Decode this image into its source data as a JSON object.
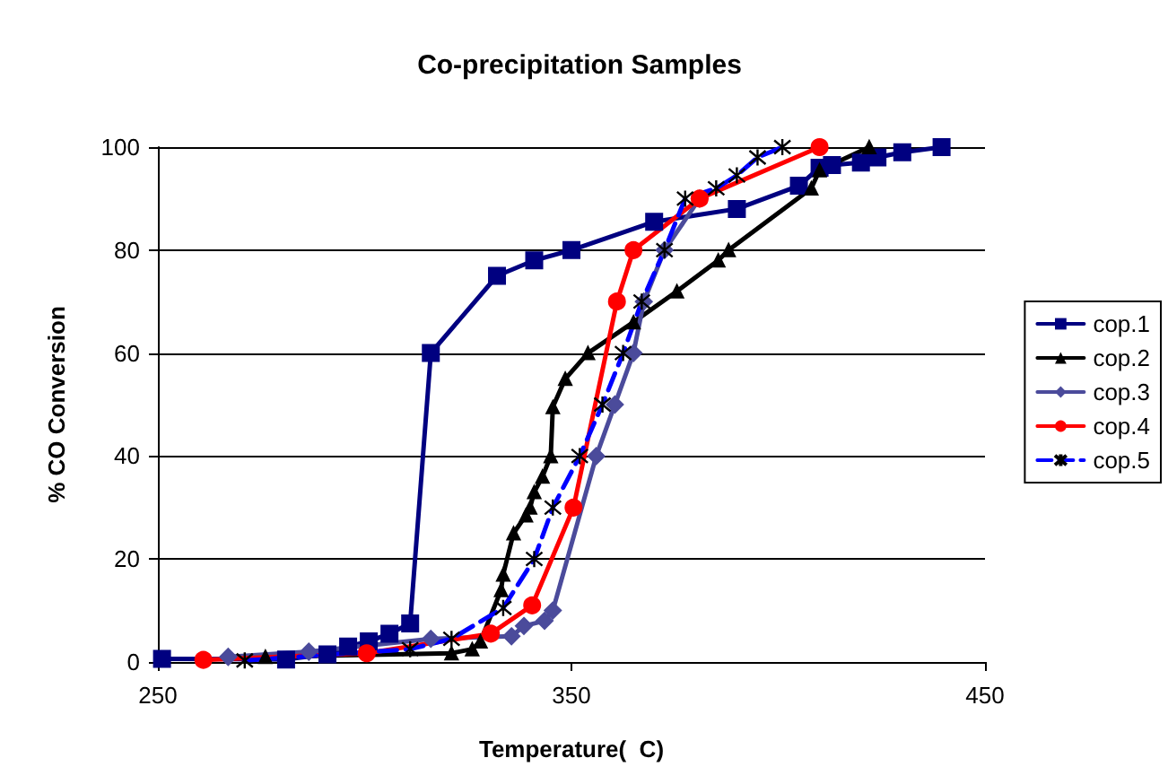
{
  "chart_data": {
    "type": "line",
    "title": "Co-precipitation Samples",
    "xlabel": "Temperature(  C)",
    "ylabel": "% CO Conversion",
    "xlim": [
      250,
      450
    ],
    "xticks": [
      250,
      350,
      450
    ],
    "ylim": [
      0,
      100
    ],
    "yticks": [
      0,
      20,
      40,
      60,
      80,
      100
    ],
    "grid": "y",
    "legend": "right",
    "series": [
      {
        "name": "cop.1",
        "color": "#000080",
        "marker": "square",
        "line_style": "solid",
        "x": [
          251,
          281,
          291,
          296,
          301,
          306,
          311,
          316,
          332,
          341,
          350,
          370,
          390,
          405,
          410,
          413,
          420,
          424,
          430,
          439.5
        ],
        "values": [
          0.6,
          0.5,
          1.5,
          3,
          4,
          5.5,
          7.5,
          60,
          75,
          78,
          80,
          85.5,
          88,
          92.5,
          96,
          96.5,
          97,
          98,
          99,
          100
        ]
      },
      {
        "name": "cop.2",
        "color": "#000000",
        "marker": "triangle",
        "line_style": "solid",
        "x": [
          276,
          321,
          326,
          328,
          333,
          333.5,
          336,
          339,
          340,
          341,
          343,
          345,
          345.5,
          348.5,
          354,
          365,
          375.5,
          385.5,
          388,
          408,
          410,
          422
        ],
        "values": [
          1,
          1.7,
          2.5,
          4,
          14,
          17,
          25,
          28.5,
          30,
          33,
          36,
          40,
          49.5,
          55,
          60,
          66,
          72,
          78,
          80,
          92,
          95.5,
          100
        ]
      },
      {
        "name": "cop.3",
        "color": "#4b4b9b",
        "marker": "diamond",
        "line_style": "solid",
        "x": [
          267,
          286.5,
          316,
          335.5,
          338.5,
          343.5,
          345.5,
          356,
          360.5,
          365,
          367.5,
          372.5,
          381
        ],
        "values": [
          1,
          2,
          4.5,
          5,
          7,
          8,
          10,
          40,
          50,
          60,
          70,
          80,
          90
        ]
      },
      {
        "name": "cop.4",
        "color": "#ff0000",
        "marker": "circle",
        "line_style": "solid",
        "x": [
          261,
          300.5,
          330.5,
          340.5,
          350.5,
          361,
          365,
          381,
          410
        ],
        "values": [
          0.4,
          1.7,
          5.5,
          11,
          30,
          70,
          80,
          90,
          100
        ]
      },
      {
        "name": "cop.5",
        "color": "#0000ff",
        "marker": "cross",
        "line_style": "dashed",
        "x": [
          271,
          311,
          321,
          333.5,
          341,
          345.5,
          352,
          357.5,
          362.5,
          367,
          372.5,
          377.5,
          385,
          390,
          395,
          401
        ],
        "values": [
          0.3,
          2.5,
          4.5,
          10.5,
          20,
          30,
          40,
          50,
          60,
          70,
          80,
          90,
          92,
          94.5,
          98,
          100
        ]
      }
    ]
  }
}
